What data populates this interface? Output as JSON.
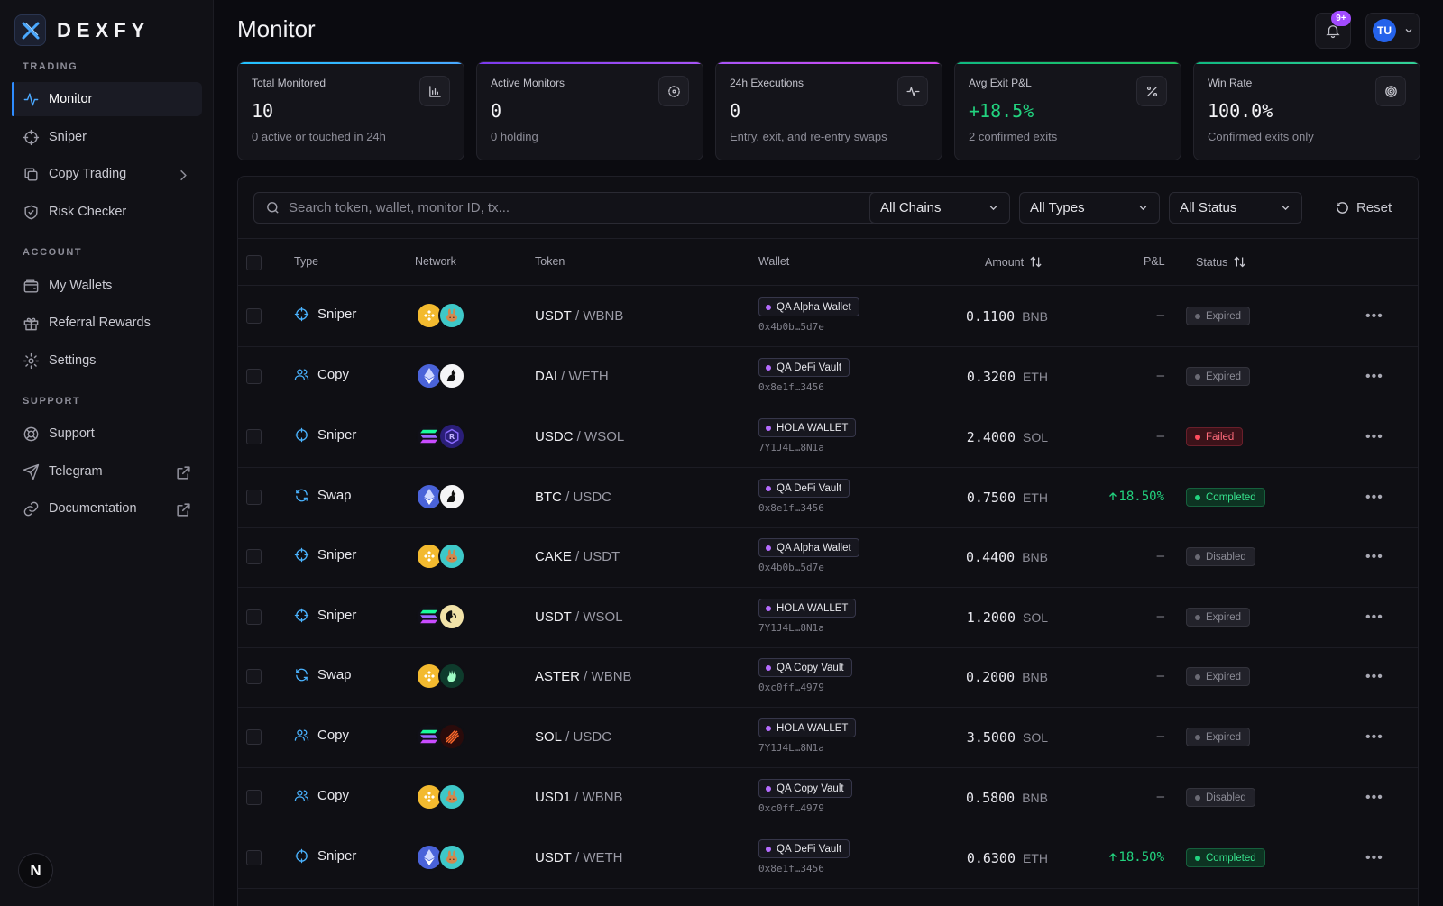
{
  "app": {
    "brand": "DEXFY",
    "page_title": "Monitor"
  },
  "sidebar": {
    "sections": [
      {
        "title": "TRADING",
        "items": [
          {
            "label": "Monitor",
            "icon": "activity-icon",
            "active": true
          },
          {
            "label": "Sniper",
            "icon": "crosshair-icon"
          },
          {
            "label": "Copy Trading",
            "icon": "copy-icon",
            "trail": "chevron-right-icon"
          },
          {
            "label": "Risk Checker",
            "icon": "shield-check-icon"
          }
        ]
      },
      {
        "title": "ACCOUNT",
        "items": [
          {
            "label": "My Wallets",
            "icon": "wallet-icon"
          },
          {
            "label": "Referral Rewards",
            "icon": "gift-icon"
          },
          {
            "label": "Settings",
            "icon": "gear-icon"
          }
        ]
      },
      {
        "title": "SUPPORT",
        "items": [
          {
            "label": "Support",
            "icon": "lifebuoy-icon"
          },
          {
            "label": "Telegram",
            "icon": "send-icon",
            "trail": "external-link-icon"
          },
          {
            "label": "Documentation",
            "icon": "link-icon",
            "trail": "external-link-icon"
          }
        ]
      }
    ],
    "footer_logo": "N"
  },
  "header": {
    "notification_count": "9+",
    "user_initials": "TU"
  },
  "stats": [
    {
      "label": "Total Monitored",
      "value": "10",
      "sub": "0 active or touched in 24h",
      "icon": "bar-chart-icon"
    },
    {
      "label": "Active Monitors",
      "value": "0",
      "sub": "0 holding",
      "icon": "radar-icon"
    },
    {
      "label": "24h Executions",
      "value": "0",
      "sub": "Entry, exit, and re-entry swaps",
      "icon": "pulse-icon"
    },
    {
      "label": "Avg Exit P&L",
      "value": "+18.5%",
      "sub": "2 confirmed exits",
      "icon": "percent-icon",
      "positive": true
    },
    {
      "label": "Win Rate",
      "value": "100.0%",
      "sub": "Confirmed exits only",
      "icon": "target-icon"
    }
  ],
  "filters": {
    "search_placeholder": "Search token, wallet, monitor ID, tx...",
    "chains": "All Chains",
    "types": "All Types",
    "status": "All Status",
    "reset": "Reset"
  },
  "table": {
    "columns": {
      "type": "Type",
      "network": "Network",
      "token": "Token",
      "wallet": "Wallet",
      "amount": "Amount",
      "pnl": "P&L",
      "status": "Status"
    },
    "rows": [
      {
        "type": "Sniper",
        "type_icon": "crosshair-icon",
        "chain": "bnb",
        "dex": "pancake",
        "base": "USDT",
        "quote": "WBNB",
        "wallet": "QA Alpha Wallet",
        "addr": "0x4b0b…5d7e",
        "amount": "0.1100",
        "unit": "BNB",
        "pnl": "—",
        "status": "Expired",
        "status_kind": "muted"
      },
      {
        "type": "Copy",
        "type_icon": "users-icon",
        "chain": "eth",
        "dex": "uniswap",
        "base": "DAI",
        "quote": "WETH",
        "wallet": "QA DeFi Vault",
        "addr": "0x8e1f…3456",
        "amount": "0.3200",
        "unit": "ETH",
        "pnl": "—",
        "status": "Expired",
        "status_kind": "muted"
      },
      {
        "type": "Sniper",
        "type_icon": "crosshair-icon",
        "chain": "sol",
        "dex": "raydium",
        "base": "USDC",
        "quote": "WSOL",
        "wallet": "HOLA WALLET",
        "addr": "7Y1J4L…8N1a",
        "amount": "2.4000",
        "unit": "SOL",
        "pnl": "—",
        "status": "Failed",
        "status_kind": "failed"
      },
      {
        "type": "Swap",
        "type_icon": "refresh-icon",
        "chain": "eth",
        "dex": "uniswap",
        "base": "BTC",
        "quote": "USDC",
        "wallet": "QA DeFi Vault",
        "addr": "0x8e1f…3456",
        "amount": "0.7500",
        "unit": "ETH",
        "pnl": "18.50%",
        "pnl_up": true,
        "status": "Completed",
        "status_kind": "ok"
      },
      {
        "type": "Sniper",
        "type_icon": "crosshair-icon",
        "chain": "bnb",
        "dex": "pancake",
        "base": "CAKE",
        "quote": "USDT",
        "wallet": "QA Alpha Wallet",
        "addr": "0x4b0b…5d7e",
        "amount": "0.4400",
        "unit": "BNB",
        "pnl": "—",
        "status": "Disabled",
        "status_kind": "muted"
      },
      {
        "type": "Sniper",
        "type_icon": "crosshair-icon",
        "chain": "sol",
        "dex": "orca",
        "base": "USDT",
        "quote": "WSOL",
        "wallet": "HOLA WALLET",
        "addr": "7Y1J4L…8N1a",
        "amount": "1.2000",
        "unit": "SOL",
        "pnl": "—",
        "status": "Expired",
        "status_kind": "muted"
      },
      {
        "type": "Swap",
        "type_icon": "refresh-icon",
        "chain": "bnb",
        "dex": "aster",
        "base": "ASTER",
        "quote": "WBNB",
        "wallet": "QA Copy Vault",
        "addr": "0xc0ff…4979",
        "amount": "0.2000",
        "unit": "BNB",
        "pnl": "—",
        "status": "Expired",
        "status_kind": "muted"
      },
      {
        "type": "Copy",
        "type_icon": "users-icon",
        "chain": "sol",
        "dex": "meteora",
        "base": "SOL",
        "quote": "USDC",
        "wallet": "HOLA WALLET",
        "addr": "7Y1J4L…8N1a",
        "amount": "3.5000",
        "unit": "SOL",
        "pnl": "—",
        "status": "Expired",
        "status_kind": "muted"
      },
      {
        "type": "Copy",
        "type_icon": "users-icon",
        "chain": "bnb",
        "dex": "pancake",
        "base": "USD1",
        "quote": "WBNB",
        "wallet": "QA Copy Vault",
        "addr": "0xc0ff…4979",
        "amount": "0.5800",
        "unit": "BNB",
        "pnl": "—",
        "status": "Disabled",
        "status_kind": "muted"
      },
      {
        "type": "Sniper",
        "type_icon": "crosshair-icon",
        "chain": "eth",
        "dex": "pancake",
        "base": "USDT",
        "quote": "WETH",
        "wallet": "QA DeFi Vault",
        "addr": "0x8e1f…3456",
        "amount": "0.6300",
        "unit": "ETH",
        "pnl": "18.50%",
        "pnl_up": true,
        "status": "Completed",
        "status_kind": "ok"
      }
    ]
  }
}
